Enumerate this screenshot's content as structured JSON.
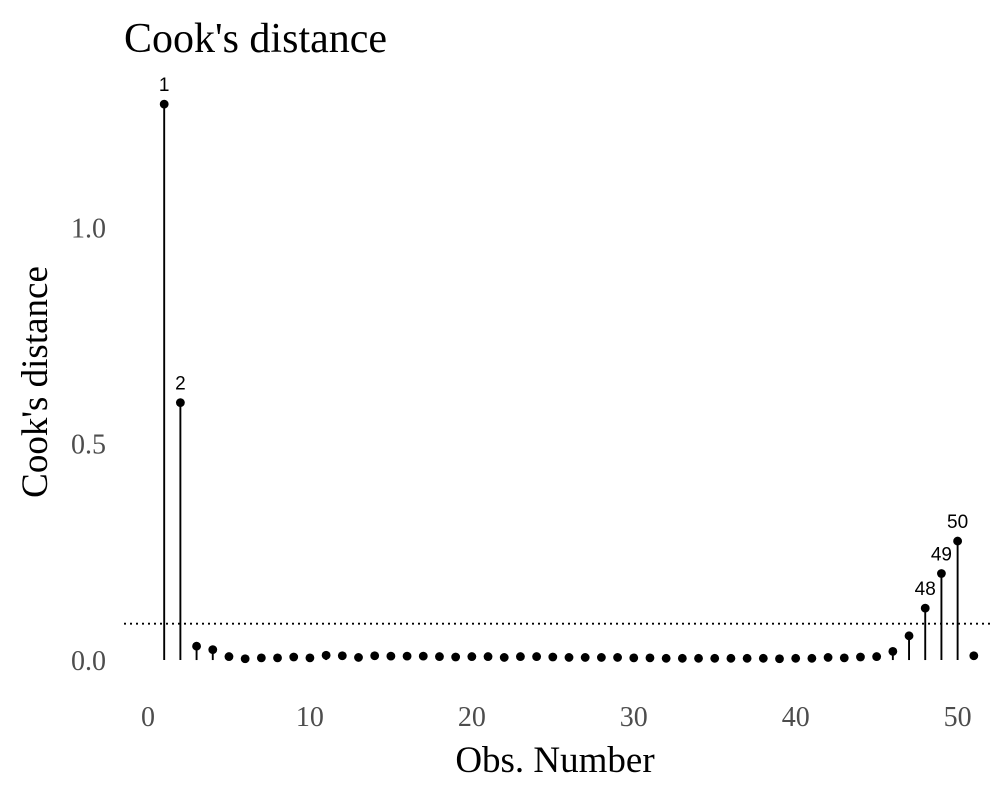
{
  "chart_data": {
    "type": "scatter",
    "style": "lollipop",
    "title": "Cook's distance",
    "xlabel": "Obs. Number",
    "ylabel": "Cook's distance",
    "xlim": [
      0,
      52
    ],
    "ylim": [
      -0.06,
      1.35
    ],
    "xticks": [
      0,
      10,
      20,
      30,
      40,
      50
    ],
    "yticks": [
      0.0,
      0.5,
      1.0
    ],
    "xtick_labels": [
      "0",
      "10",
      "20",
      "30",
      "40",
      "50"
    ],
    "ytick_labels": [
      "0.0",
      "0.5",
      "1.0"
    ],
    "threshold": 0.084,
    "threshold_style": "dotted",
    "grid": false,
    "x": [
      1,
      2,
      3,
      4,
      5,
      6,
      7,
      8,
      9,
      10,
      11,
      12,
      13,
      14,
      15,
      16,
      17,
      18,
      19,
      20,
      21,
      22,
      23,
      24,
      25,
      26,
      27,
      28,
      29,
      30,
      31,
      32,
      33,
      34,
      35,
      36,
      37,
      38,
      39,
      40,
      41,
      42,
      43,
      44,
      45,
      46,
      47,
      48,
      49,
      50,
      51
    ],
    "values": [
      1.285,
      0.595,
      0.032,
      0.024,
      0.008,
      0.003,
      0.005,
      0.005,
      0.007,
      0.005,
      0.011,
      0.01,
      0.006,
      0.01,
      0.009,
      0.009,
      0.009,
      0.008,
      0.007,
      0.008,
      0.008,
      0.006,
      0.008,
      0.008,
      0.007,
      0.006,
      0.006,
      0.006,
      0.006,
      0.005,
      0.005,
      0.004,
      0.004,
      0.004,
      0.004,
      0.004,
      0.004,
      0.004,
      0.003,
      0.004,
      0.004,
      0.006,
      0.005,
      0.007,
      0.008,
      0.02,
      0.056,
      0.12,
      0.2,
      0.275,
      0.01
    ],
    "labeled_points": [
      {
        "x": 1,
        "label": "1"
      },
      {
        "x": 2,
        "label": "2"
      },
      {
        "x": 48,
        "label": "48"
      },
      {
        "x": 49,
        "label": "49"
      },
      {
        "x": 50,
        "label": "50"
      }
    ],
    "colors": {
      "marks": "#000000",
      "tick_text": "#4d4d4d"
    }
  }
}
